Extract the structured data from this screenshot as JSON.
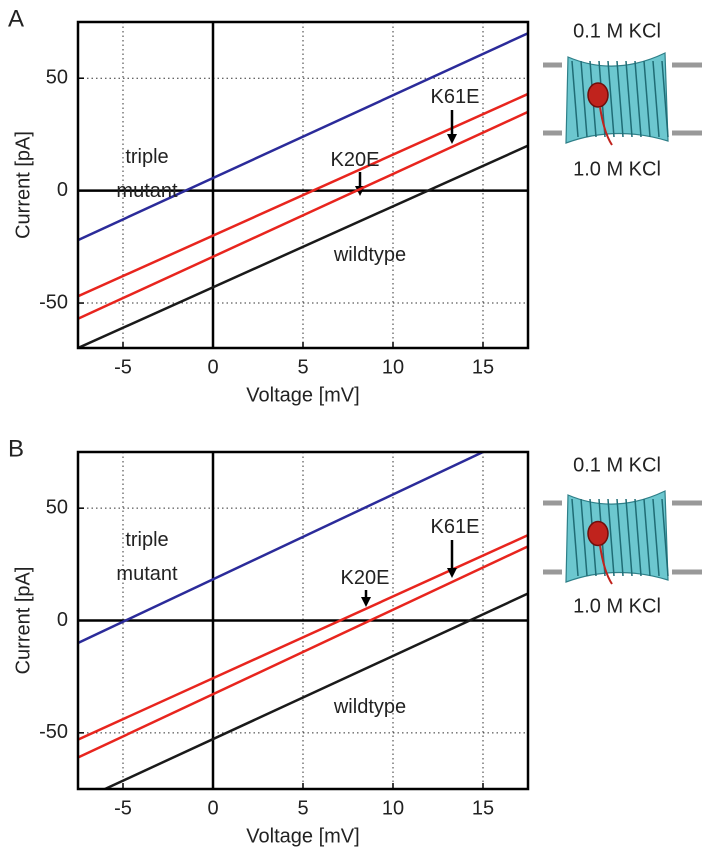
{
  "chart_data": [
    {
      "type": "line",
      "panel_label": "A",
      "xlabel": "Voltage [mV]",
      "ylabel": "Current [pA]",
      "xlim": [
        -7.5,
        17.5
      ],
      "ylim": [
        -70,
        75
      ],
      "xticks": [
        -5,
        0,
        5,
        10,
        15
      ],
      "yticks": [
        -50,
        0,
        50
      ],
      "series": [
        {
          "name": "triple mutant",
          "color": "#2b2b9a",
          "x": [
            -7.5,
            17.5
          ],
          "values": [
            -22,
            70
          ]
        },
        {
          "name": "K20E",
          "color": "#e8251e",
          "x": [
            -7.5,
            17.5
          ],
          "values": [
            -47,
            43
          ]
        },
        {
          "name": "K61E",
          "color": "#e8251e",
          "x": [
            -7.5,
            17.5
          ],
          "values": [
            -57,
            35
          ]
        },
        {
          "name": "wildtype",
          "color": "#1a1a1a",
          "x": [
            -7.5,
            17.5
          ],
          "values": [
            -70,
            20
          ]
        }
      ],
      "inset": {
        "top_label": "0.1 M KCl",
        "bottom_label": "1.0 M KCl"
      }
    },
    {
      "type": "line",
      "panel_label": "B",
      "xlabel": "Voltage [mV]",
      "ylabel": "Current [pA]",
      "xlim": [
        -7.5,
        17.5
      ],
      "ylim": [
        -75,
        75
      ],
      "xticks": [
        -5,
        0,
        5,
        10,
        15
      ],
      "yticks": [
        -50,
        0,
        50
      ],
      "series": [
        {
          "name": "triple mutant",
          "color": "#2b2b9a",
          "x": [
            -7.5,
            15
          ],
          "values": [
            -10,
            75
          ]
        },
        {
          "name": "K20E",
          "color": "#e8251e",
          "x": [
            -7.5,
            17.5
          ],
          "values": [
            -53,
            38
          ]
        },
        {
          "name": "K61E",
          "color": "#e8251e",
          "x": [
            -7.5,
            17.5
          ],
          "values": [
            -61,
            33
          ]
        },
        {
          "name": "wildtype",
          "color": "#1a1a1a",
          "x": [
            -6,
            17.5
          ],
          "values": [
            -75,
            12
          ]
        }
      ],
      "inset": {
        "top_label": "0.1 M KCl",
        "bottom_label": "1.0 M KCl"
      }
    }
  ]
}
